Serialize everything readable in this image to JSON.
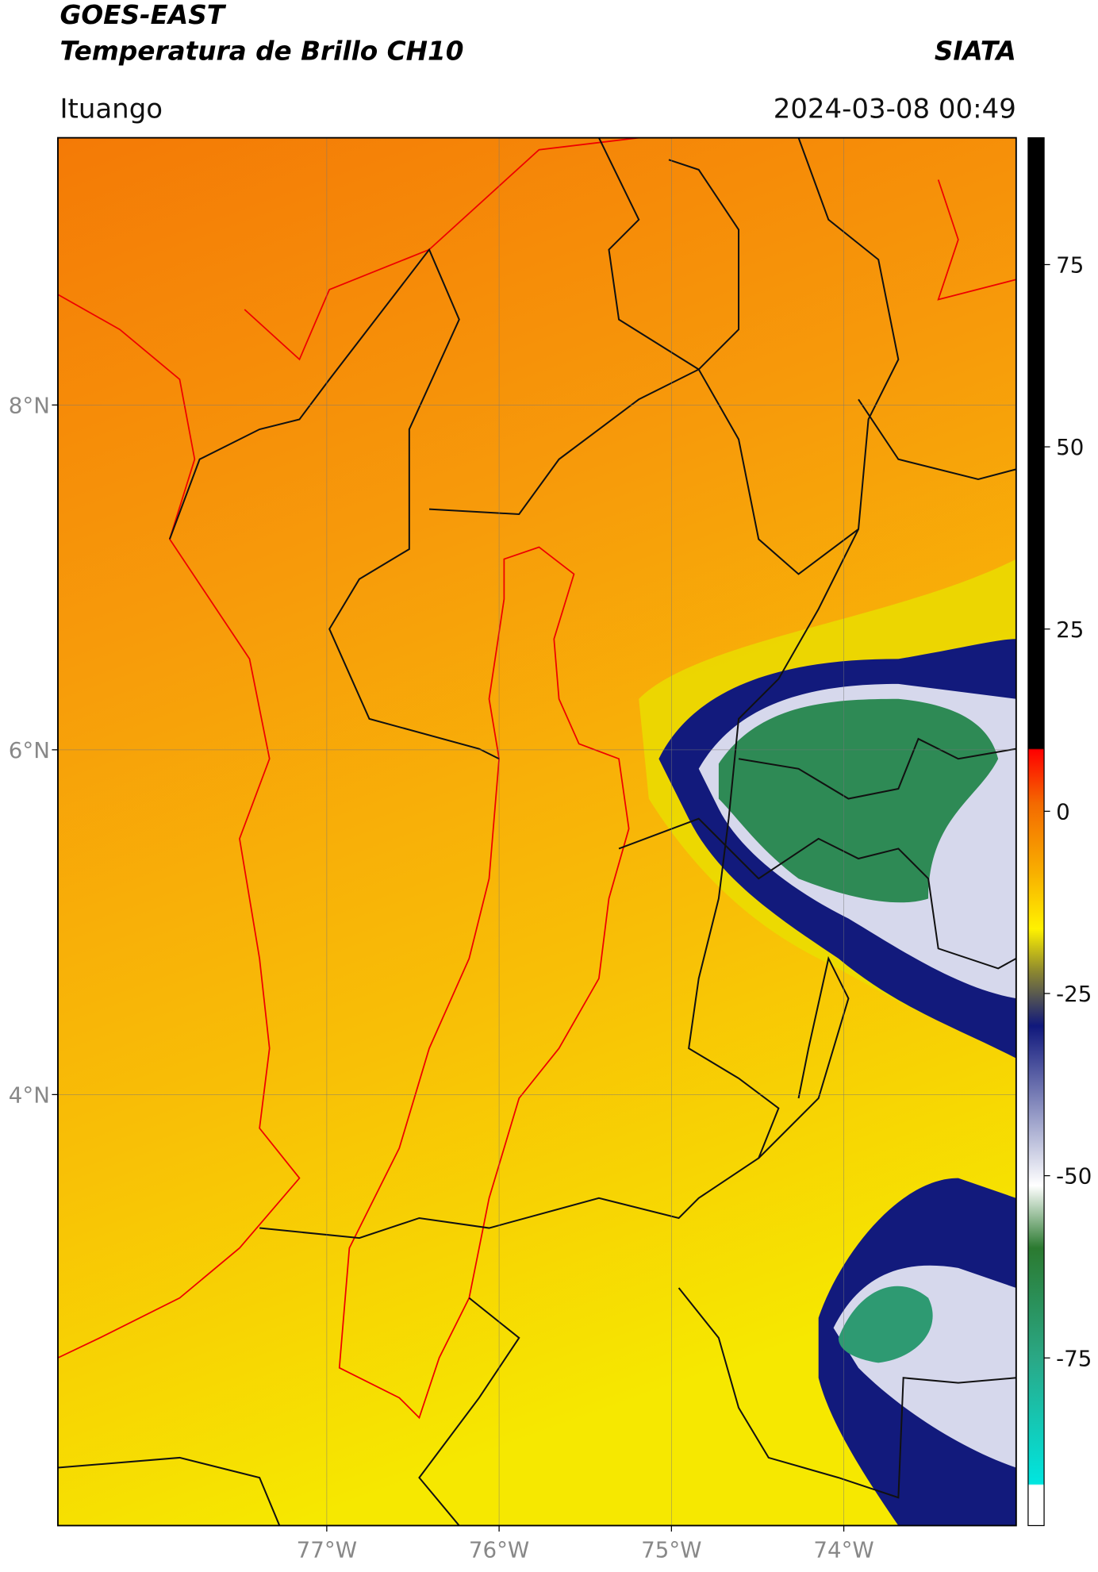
{
  "header": {
    "title_line1": "GOES-EAST",
    "title_line2": "Temperatura de Brillo CH10",
    "organization": "SIATA",
    "location": "Ituango",
    "datetime": "2024-03-08 00:49"
  },
  "map": {
    "lat_range": [
      1.5,
      9.55
    ],
    "lon_range": [
      -78.56,
      -73.0
    ],
    "lat_ticks": [
      {
        "value": 8,
        "label": "8°N"
      },
      {
        "value": 6,
        "label": "6°N"
      },
      {
        "value": 4,
        "label": "4°N"
      }
    ],
    "lon_ticks": [
      {
        "value": -77,
        "label": "77°W"
      },
      {
        "value": -76,
        "label": "76°W"
      },
      {
        "value": -75,
        "label": "75°W"
      },
      {
        "value": -74,
        "label": "74°W"
      }
    ]
  },
  "colorbar": {
    "range": [
      -98,
      92.4
    ],
    "ticks": [
      75,
      50,
      25,
      0,
      -25,
      -50,
      -75
    ]
  }
}
